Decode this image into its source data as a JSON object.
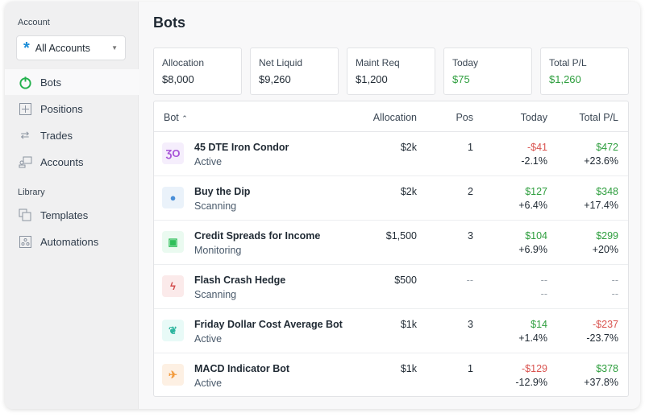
{
  "sidebar": {
    "account_label": "Account",
    "account_select": "All Accounts",
    "library_label": "Library",
    "nav": [
      {
        "label": "Bots",
        "icon": "power-icon"
      },
      {
        "label": "Positions",
        "icon": "plus-square-icon"
      },
      {
        "label": "Trades",
        "icon": "arrows-icon"
      },
      {
        "label": "Accounts",
        "icon": "accounts-icon"
      }
    ],
    "library": [
      {
        "label": "Templates",
        "icon": "templates-icon"
      },
      {
        "label": "Automations",
        "icon": "automations-icon"
      }
    ]
  },
  "page_title": "Bots",
  "summary": [
    {
      "label": "Allocation",
      "value": "$8,000"
    },
    {
      "label": "Net Liquid",
      "value": "$9,260"
    },
    {
      "label": "Maint Req",
      "value": "$1,200"
    },
    {
      "label": "Today",
      "value": "$75"
    },
    {
      "label": "Total P/L",
      "value": "$1,260"
    }
  ],
  "table": {
    "headers": {
      "bot": "Bot",
      "sort": "⌃",
      "allocation": "Allocation",
      "pos": "Pos",
      "today": "Today",
      "total": "Total P/L"
    },
    "rows": [
      {
        "name": "45 DTE Iron Condor",
        "status": "Active",
        "allocation": "$2k",
        "pos": "1",
        "today": "-$41",
        "today_pct": "-2.1%",
        "total": "$472",
        "total_pct": "+23.6%",
        "icon": "iron-condor-icon",
        "color": "#a855d8",
        "bg": "#f5eefc",
        "glyph": "ƷO"
      },
      {
        "name": "Buy the Dip",
        "status": "Scanning",
        "allocation": "$2k",
        "pos": "2",
        "today": "$127",
        "today_pct": "+6.4%",
        "total": "$348",
        "total_pct": "+17.4%",
        "icon": "apple-icon",
        "color": "#4a8fd8",
        "bg": "#eaf2fa",
        "glyph": "●"
      },
      {
        "name": "Credit Spreads for Income",
        "status": "Monitoring",
        "allocation": "$1,500",
        "pos": "3",
        "today": "$104",
        "today_pct": "+6.9%",
        "total": "$299",
        "total_pct": "+20%",
        "icon": "robot-icon",
        "color": "#2fbf5a",
        "bg": "#eafaf0",
        "glyph": "▣"
      },
      {
        "name": "Flash Crash Hedge",
        "status": "Scanning",
        "allocation": "$500",
        "pos": "--",
        "today": "--",
        "today_pct": "--",
        "total": "--",
        "total_pct": "--",
        "icon": "lightning-icon",
        "color": "#d24b4b",
        "bg": "#fbeaea",
        "glyph": "ϟ"
      },
      {
        "name": "Friday Dollar Cost Average Bot",
        "status": "Active",
        "allocation": "$1k",
        "pos": "3",
        "today": "$14",
        "today_pct": "+1.4%",
        "total": "-$237",
        "total_pct": "-23.7%",
        "icon": "feather-icon",
        "color": "#2fb6a0",
        "bg": "#e8faf7",
        "glyph": "❦"
      },
      {
        "name": "MACD Indicator Bot",
        "status": "Active",
        "allocation": "$1k",
        "pos": "1",
        "today": "-$129",
        "today_pct": "-12.9%",
        "total": "$378",
        "total_pct": "+37.8%",
        "icon": "airplane-icon",
        "color": "#f29a3c",
        "bg": "#fdf0e3",
        "glyph": "✈"
      }
    ]
  },
  "colors": {
    "positive": "#2e9e3e",
    "negative": "#d9534f",
    "accent": "#1a8cd8"
  }
}
